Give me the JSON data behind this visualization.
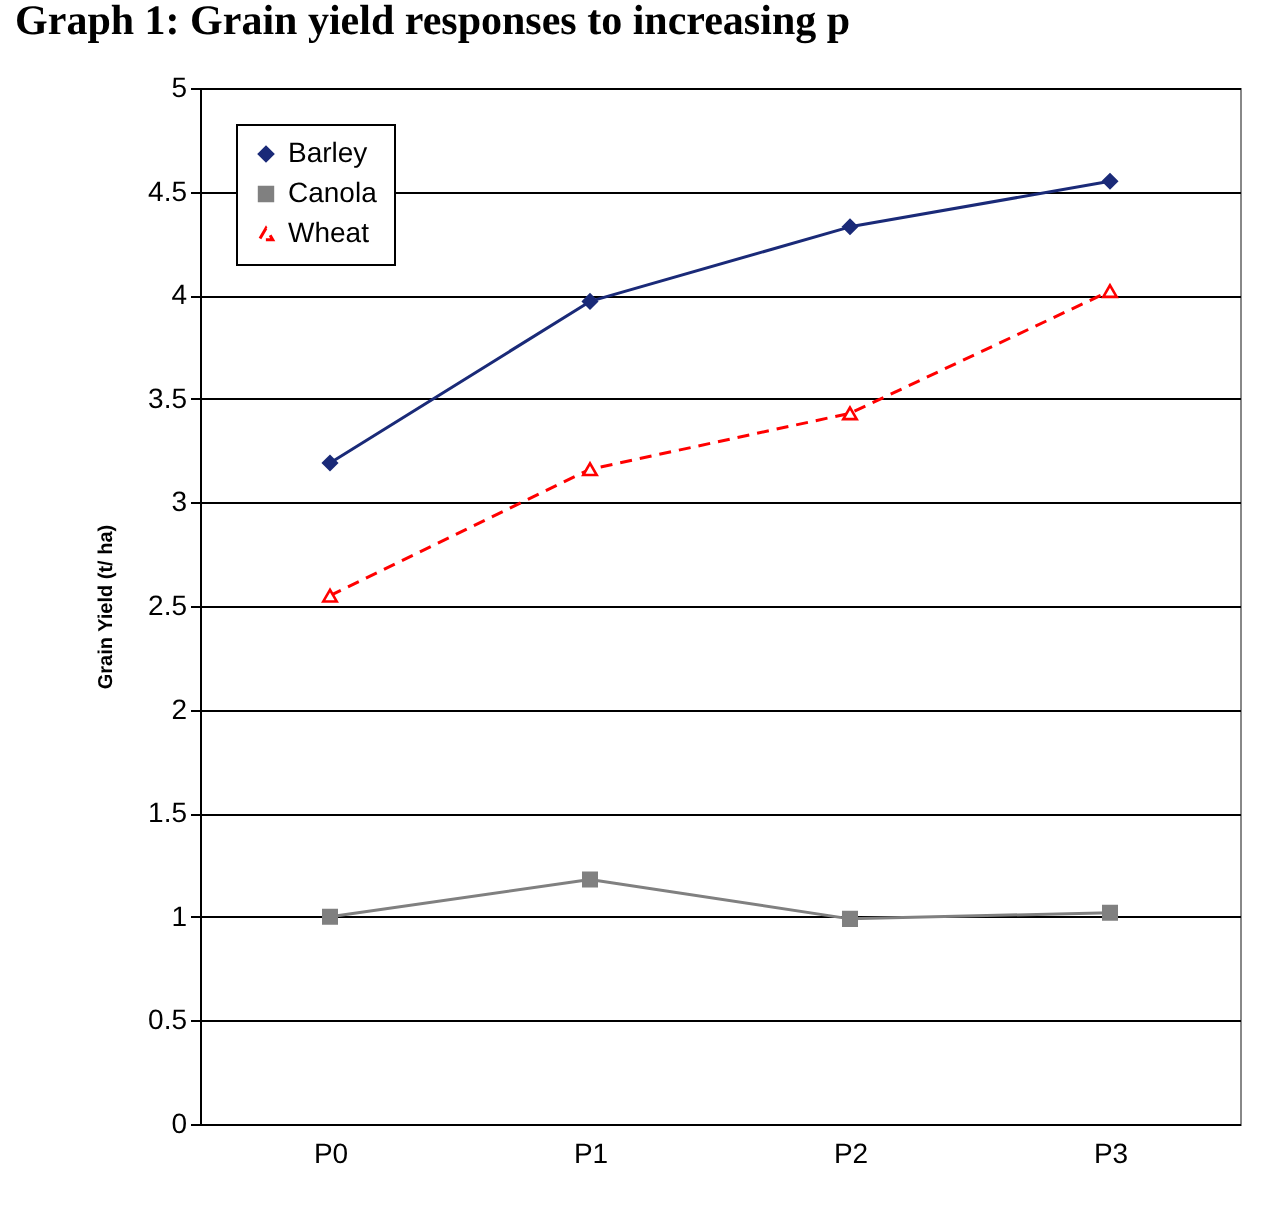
{
  "chart_data": {
    "type": "line",
    "title": "Graph 1: Grain yield responses to increasing p",
    "ylabel": "Grain Yield (t/ ha)",
    "categories": [
      "P0",
      "P1",
      "P2",
      "P3"
    ],
    "series": [
      {
        "name": "Barley",
        "color": "#1a2a78",
        "marker": "diamond",
        "line_style": "solid",
        "values": [
          3.19,
          3.97,
          4.33,
          4.55
        ]
      },
      {
        "name": "Canola",
        "color": "#808080",
        "marker": "square",
        "line_style": "solid",
        "values": [
          1.0,
          1.18,
          0.99,
          1.02
        ]
      },
      {
        "name": "Wheat",
        "color": "#ff0000",
        "marker": "triangle",
        "line_style": "dashed",
        "values": [
          2.55,
          3.16,
          3.43,
          4.02
        ]
      }
    ],
    "ylim": [
      0,
      5
    ],
    "yticks": [
      0,
      0.5,
      1,
      1.5,
      2,
      2.5,
      3,
      3.5,
      4,
      4.5,
      5
    ],
    "grid": "y",
    "legend": "top left"
  }
}
